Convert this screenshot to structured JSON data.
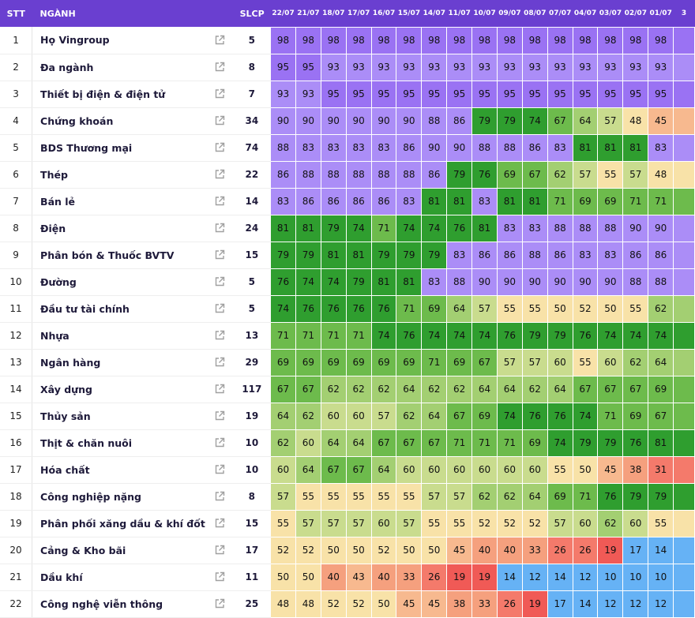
{
  "header": {
    "stt": "STT",
    "nganh": "NGÀNH",
    "slcp": "SLCP",
    "dates": [
      "22/07",
      "21/07",
      "18/07",
      "17/07",
      "16/07",
      "15/07",
      "14/07",
      "11/07",
      "10/07",
      "09/07",
      "08/07",
      "07/07",
      "04/07",
      "03/07",
      "02/07",
      "01/07",
      "3"
    ]
  },
  "colors": {
    "header_bg": "#6a3fd0",
    "purple_dark": "#9a72f3",
    "purple_light": "#ab8df7",
    "green_dark": "#2f9e2f",
    "green_mid": "#6dbb4c",
    "green_light": "#a3cf72",
    "yellow_green": "#c9dc8e",
    "cream": "#f8e2a8",
    "salmon_light": "#f7b98f",
    "salmon": "#f5a07e",
    "red_light": "#f47a6b",
    "red": "#f05a56",
    "blue": "#66b2f5"
  },
  "rows": [
    {
      "stt": "1",
      "name": "Họ Vingroup",
      "slcp": "5",
      "values": [
        98,
        98,
        98,
        98,
        98,
        98,
        98,
        98,
        98,
        98,
        98,
        98,
        98,
        98,
        98,
        98
      ]
    },
    {
      "stt": "2",
      "name": "Đa ngành",
      "slcp": "8",
      "values": [
        95,
        95,
        93,
        93,
        93,
        93,
        93,
        93,
        93,
        93,
        93,
        93,
        93,
        93,
        93,
        93
      ]
    },
    {
      "stt": "3",
      "name": "Thiết bị điện & điện tử",
      "slcp": "7",
      "values": [
        93,
        93,
        95,
        95,
        95,
        95,
        95,
        95,
        95,
        95,
        95,
        95,
        95,
        95,
        95,
        95
      ]
    },
    {
      "stt": "4",
      "name": "Chứng khoán",
      "slcp": "34",
      "values": [
        90,
        90,
        90,
        90,
        90,
        90,
        88,
        86,
        79,
        79,
        74,
        67,
        64,
        57,
        48,
        45
      ]
    },
    {
      "stt": "5",
      "name": "BDS Thương mại",
      "slcp": "74",
      "values": [
        88,
        83,
        83,
        83,
        83,
        86,
        90,
        90,
        88,
        88,
        86,
        83,
        81,
        81,
        81,
        83
      ]
    },
    {
      "stt": "6",
      "name": "Thép",
      "slcp": "22",
      "values": [
        86,
        88,
        88,
        88,
        88,
        88,
        86,
        79,
        76,
        69,
        67,
        62,
        57,
        55,
        57,
        48
      ]
    },
    {
      "stt": "7",
      "name": "Bán lẻ",
      "slcp": "14",
      "values": [
        83,
        86,
        86,
        86,
        86,
        83,
        81,
        81,
        83,
        81,
        81,
        71,
        69,
        69,
        71,
        71
      ]
    },
    {
      "stt": "8",
      "name": "Điện",
      "slcp": "24",
      "values": [
        81,
        81,
        79,
        74,
        71,
        74,
        74,
        76,
        81,
        83,
        83,
        88,
        88,
        88,
        90,
        90
      ]
    },
    {
      "stt": "9",
      "name": "Phân bón & Thuốc BVTV",
      "slcp": "15",
      "values": [
        79,
        79,
        81,
        81,
        79,
        79,
        79,
        83,
        86,
        86,
        88,
        86,
        83,
        83,
        86,
        86
      ]
    },
    {
      "stt": "10",
      "name": "Đường",
      "slcp": "5",
      "values": [
        76,
        74,
        74,
        79,
        81,
        81,
        83,
        88,
        90,
        90,
        90,
        90,
        90,
        90,
        88,
        88
      ]
    },
    {
      "stt": "11",
      "name": "Đầu tư tài chính",
      "slcp": "5",
      "values": [
        74,
        76,
        76,
        76,
        76,
        71,
        69,
        64,
        57,
        55,
        55,
        50,
        52,
        50,
        55,
        62
      ]
    },
    {
      "stt": "12",
      "name": "Nhựa",
      "slcp": "13",
      "values": [
        71,
        71,
        71,
        71,
        74,
        76,
        74,
        74,
        74,
        76,
        79,
        79,
        76,
        74,
        74,
        74
      ]
    },
    {
      "stt": "13",
      "name": "Ngân hàng",
      "slcp": "29",
      "values": [
        69,
        69,
        69,
        69,
        69,
        69,
        71,
        69,
        67,
        57,
        57,
        60,
        55,
        60,
        62,
        64
      ]
    },
    {
      "stt": "14",
      "name": "Xây dựng",
      "slcp": "117",
      "values": [
        67,
        67,
        62,
        62,
        62,
        64,
        62,
        62,
        64,
        64,
        62,
        64,
        67,
        67,
        67,
        69
      ]
    },
    {
      "stt": "15",
      "name": "Thủy sản",
      "slcp": "19",
      "values": [
        64,
        62,
        60,
        60,
        57,
        62,
        64,
        67,
        69,
        74,
        76,
        76,
        74,
        71,
        69,
        67
      ]
    },
    {
      "stt": "16",
      "name": "Thịt & chăn nuôi",
      "slcp": "10",
      "values": [
        62,
        60,
        64,
        64,
        67,
        67,
        67,
        71,
        71,
        71,
        69,
        74,
        79,
        79,
        76,
        81
      ]
    },
    {
      "stt": "17",
      "name": "Hóa chất",
      "slcp": "10",
      "values": [
        60,
        64,
        67,
        67,
        64,
        60,
        60,
        60,
        60,
        60,
        60,
        55,
        50,
        45,
        38,
        31
      ]
    },
    {
      "stt": "18",
      "name": "Công nghiệp nặng",
      "slcp": "8",
      "values": [
        57,
        55,
        55,
        55,
        55,
        55,
        57,
        57,
        62,
        62,
        64,
        69,
        71,
        76,
        79,
        79
      ]
    },
    {
      "stt": "19",
      "name": "Phân phối xăng dầu & khí đốt",
      "slcp": "15",
      "values": [
        55,
        57,
        57,
        57,
        60,
        57,
        55,
        55,
        52,
        52,
        52,
        57,
        60,
        62,
        60,
        55
      ]
    },
    {
      "stt": "20",
      "name": "Cảng & Kho bãi",
      "slcp": "17",
      "values": [
        52,
        52,
        50,
        50,
        52,
        50,
        50,
        45,
        40,
        40,
        33,
        26,
        26,
        19,
        17,
        14
      ]
    },
    {
      "stt": "21",
      "name": "Dầu khí",
      "slcp": "11",
      "values": [
        50,
        50,
        40,
        43,
        40,
        33,
        26,
        19,
        19,
        14,
        12,
        14,
        12,
        10,
        10,
        10
      ]
    },
    {
      "stt": "22",
      "name": "Công nghệ viễn thông",
      "slcp": "25",
      "values": [
        48,
        48,
        52,
        52,
        50,
        45,
        45,
        38,
        33,
        26,
        19,
        17,
        14,
        12,
        12,
        12
      ]
    }
  ]
}
